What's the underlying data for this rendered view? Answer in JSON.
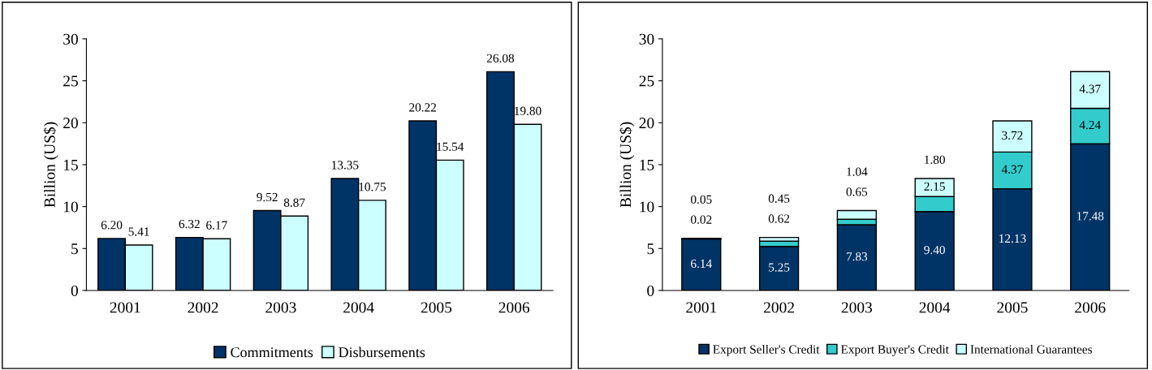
{
  "chart_data": [
    {
      "type": "bar",
      "categories": [
        "2001",
        "2002",
        "2003",
        "2004",
        "2005",
        "2006"
      ],
      "ylabel": "Billion (US$)",
      "ylim": [
        0,
        30
      ],
      "yticks": [
        0,
        5,
        10,
        15,
        20,
        25,
        30
      ],
      "grid": false,
      "legend": "bottom",
      "series": [
        {
          "name": "Commitments",
          "color": "#003366",
          "values": [
            6.2,
            6.32,
            9.52,
            13.35,
            20.22,
            26.08
          ],
          "value_labels": [
            "6.20",
            "6.32",
            "9.52",
            "13.35",
            "20.22",
            "26.08"
          ]
        },
        {
          "name": "Disbursements",
          "color": "#ccffff",
          "values": [
            5.41,
            6.17,
            8.87,
            10.75,
            15.54,
            19.8
          ],
          "value_labels": [
            "5.41",
            "6.17",
            "8.87",
            "10.75",
            "15.54",
            "19.80"
          ]
        }
      ]
    },
    {
      "type": "bar",
      "stacked": true,
      "categories": [
        "2001",
        "2002",
        "2003",
        "2004",
        "2005",
        "2006"
      ],
      "ylabel": "Billion (US$)",
      "ylim": [
        0,
        30
      ],
      "yticks": [
        0,
        5,
        10,
        15,
        20,
        25,
        30
      ],
      "grid": false,
      "legend": "bottom",
      "series": [
        {
          "name": "Export Seller's Credit",
          "color": "#003366",
          "values": [
            6.14,
            5.25,
            7.83,
            9.4,
            12.13,
            17.48
          ],
          "value_labels": [
            "6.14",
            "5.25",
            "7.83",
            "9.40",
            "12.13",
            "17.48"
          ]
        },
        {
          "name": "Export Buyer's Credit",
          "color": "#33cccc",
          "values": [
            0.02,
            0.62,
            0.65,
            1.8,
            4.37,
            4.24
          ],
          "value_labels": [
            "0.02",
            "0.62",
            "0.65",
            "1.80",
            "4.37",
            "4.24"
          ]
        },
        {
          "name": "International Guarantees",
          "color": "#ccffff",
          "values": [
            0.05,
            0.45,
            1.04,
            2.15,
            3.72,
            4.37
          ],
          "value_labels": [
            "0.05",
            "0.45",
            "1.04",
            "2.15",
            "3.72",
            "4.37"
          ]
        }
      ]
    }
  ]
}
